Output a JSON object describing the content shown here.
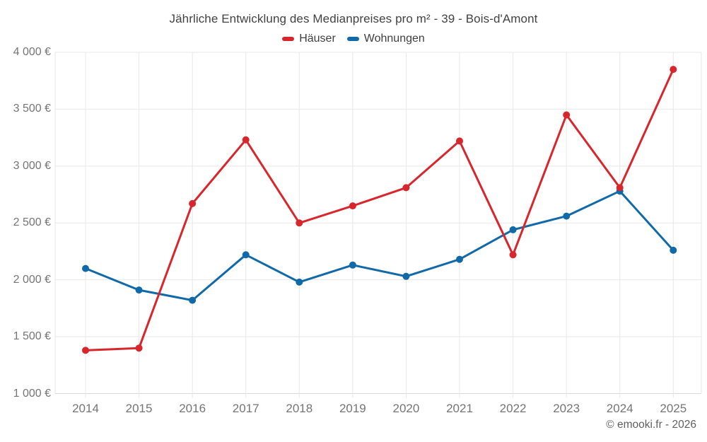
{
  "title": "Jährliche Entwicklung des Medianpreises pro m² - 39 - Bois-d'Amont",
  "legend": [
    {
      "label": "Häuser",
      "color": "#d8262c"
    },
    {
      "label": "Wohnungen",
      "color": "#1069a8"
    }
  ],
  "footer": {
    "credit": "© emooki.fr - 2026"
  },
  "colors": {
    "haeuser": "#d8262c",
    "wohnungen": "#1069a8",
    "gridline": "#e8e8e8",
    "axis_line": "#d8d8d8",
    "axis_text": "#757575"
  },
  "chart_data": {
    "type": "line",
    "title": "Jährliche Entwicklung des Medianpreises pro m² - 39 - Bois-d'Amont",
    "categories": [
      "2014",
      "2015",
      "2016",
      "2017",
      "2018",
      "2019",
      "2020",
      "2021",
      "2022",
      "2023",
      "2024",
      "2025"
    ],
    "series": [
      {
        "name": "Häuser",
        "color": "#d8262c",
        "values": [
          1380,
          1400,
          2670,
          3230,
          2500,
          2650,
          2810,
          3220,
          2220,
          3450,
          2810,
          3850
        ]
      },
      {
        "name": "Wohnungen",
        "color": "#1069a8",
        "values": [
          2100,
          1910,
          1820,
          2220,
          1980,
          2130,
          2030,
          2180,
          2440,
          2560,
          2780,
          2260
        ]
      }
    ],
    "xlabel": "",
    "ylabel": "",
    "ylim": [
      1000,
      4000
    ],
    "ytick_step": 500,
    "ytick_labels": [
      "1 000 €",
      "1 500 €",
      "2 000 €",
      "2 500 €",
      "3 000 €",
      "3 500 €",
      "4 000 €"
    ],
    "grid": true,
    "legend_position": "top",
    "marker": "circle",
    "currency": "€"
  }
}
